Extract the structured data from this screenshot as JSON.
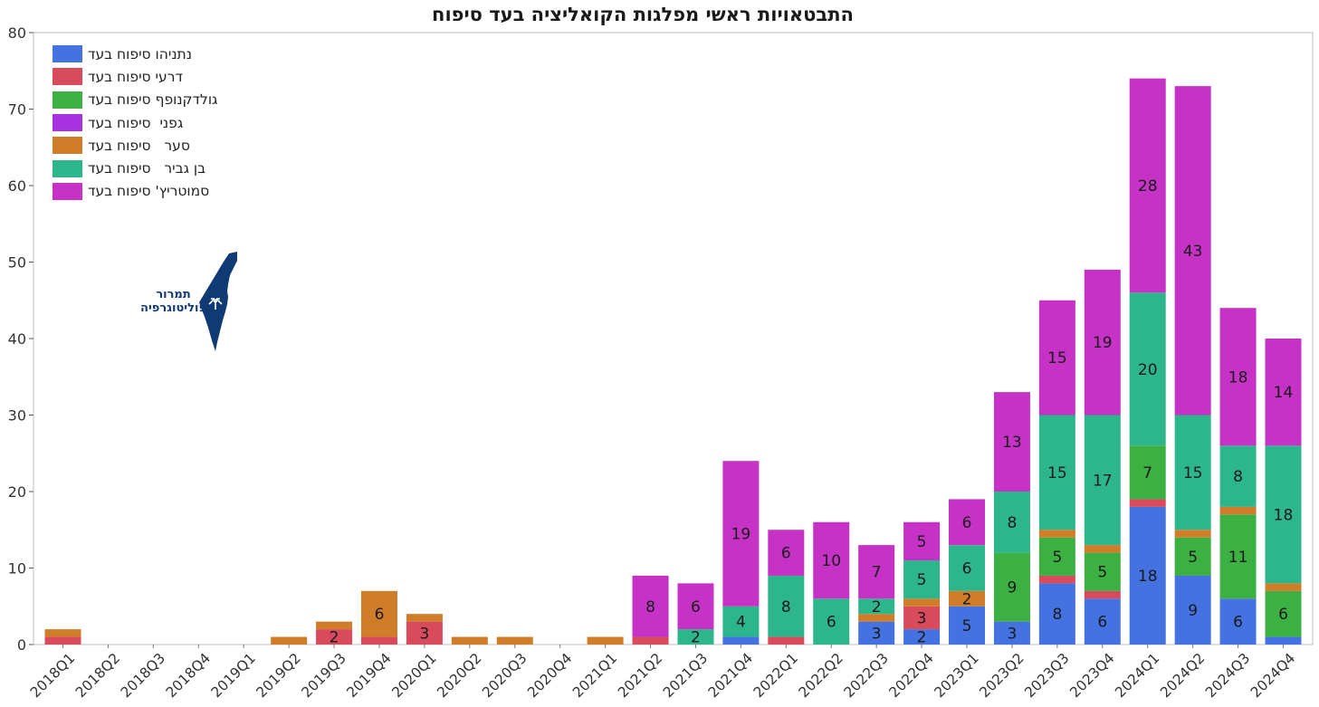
{
  "chart_data": {
    "type": "bar",
    "stacked": true,
    "title": "התבטאויות ראשי מפלגות הקואליציה בעד סיפוח",
    "xlabel": "",
    "ylabel": "",
    "ylim": [
      0,
      80
    ],
    "yticks": [
      0,
      10,
      20,
      30,
      40,
      50,
      60,
      70,
      80
    ],
    "grid": false,
    "legend_position": "top-left",
    "categories": [
      "2018Q1",
      "2018Q2",
      "2018Q3",
      "2018Q4",
      "2019Q1",
      "2019Q2",
      "2019Q3",
      "2019Q4",
      "2020Q1",
      "2020Q2",
      "2020Q3",
      "2020Q4",
      "2021Q1",
      "2021Q2",
      "2021Q3",
      "2021Q4",
      "2022Q1",
      "2022Q2",
      "2022Q3",
      "2022Q4",
      "2023Q1",
      "2023Q2",
      "2023Q3",
      "2023Q4",
      "2024Q1",
      "2024Q2",
      "2024Q3",
      "2024Q4"
    ],
    "series": [
      {
        "name": "נתניהו סיפוח בעד",
        "color": "#4472e0",
        "values": [
          0,
          0,
          0,
          0,
          0,
          0,
          0,
          0,
          0,
          0,
          0,
          0,
          0,
          0,
          0,
          1,
          0,
          0,
          3,
          2,
          5,
          3,
          8,
          6,
          18,
          9,
          6,
          1
        ],
        "labels": [
          null,
          null,
          null,
          null,
          null,
          null,
          null,
          null,
          null,
          null,
          null,
          null,
          null,
          null,
          null,
          null,
          null,
          null,
          3,
          2,
          5,
          3,
          8,
          6,
          18,
          9,
          6,
          null
        ]
      },
      {
        "name": "דרעי סיפוח בעד",
        "color": "#d94b5c",
        "values": [
          1,
          0,
          0,
          0,
          0,
          0,
          2,
          1,
          3,
          0,
          0,
          0,
          0,
          1,
          0,
          0,
          1,
          0,
          0,
          3,
          0,
          0,
          1,
          1,
          1,
          0,
          0,
          0
        ],
        "labels": [
          null,
          null,
          null,
          null,
          null,
          null,
          2,
          null,
          3,
          null,
          null,
          null,
          null,
          null,
          null,
          null,
          null,
          null,
          null,
          3,
          null,
          null,
          null,
          null,
          null,
          null,
          null,
          null
        ]
      },
      {
        "name": "גולדקנופף סיפוח בעד",
        "color": "#3cb043",
        "values": [
          0,
          0,
          0,
          0,
          0,
          0,
          0,
          0,
          0,
          0,
          0,
          0,
          0,
          0,
          0,
          0,
          0,
          0,
          0,
          0,
          0,
          9,
          5,
          5,
          7,
          5,
          11,
          6
        ],
        "labels": [
          null,
          null,
          null,
          null,
          null,
          null,
          null,
          null,
          null,
          null,
          null,
          null,
          null,
          null,
          null,
          null,
          null,
          null,
          null,
          null,
          null,
          9,
          5,
          5,
          7,
          5,
          11,
          6
        ]
      },
      {
        "name": "גפני  סיפוח בעד",
        "color": "#a932e0",
        "values": [
          0,
          0,
          0,
          0,
          0,
          0,
          0,
          0,
          0,
          0,
          0,
          0,
          0,
          0,
          0,
          0,
          0,
          0,
          0,
          0,
          0,
          0,
          0,
          0,
          0,
          0,
          0,
          0
        ],
        "labels": [
          null,
          null,
          null,
          null,
          null,
          null,
          null,
          null,
          null,
          null,
          null,
          null,
          null,
          null,
          null,
          null,
          null,
          null,
          null,
          null,
          null,
          null,
          null,
          null,
          null,
          null,
          null,
          null
        ]
      },
      {
        "name": "סער   סיפוח בעד",
        "color": "#d07d2a",
        "values": [
          1,
          0,
          0,
          0,
          0,
          1,
          1,
          6,
          1,
          1,
          1,
          0,
          1,
          0,
          0,
          0,
          0,
          0,
          1,
          1,
          2,
          0,
          1,
          1,
          0,
          1,
          1,
          1
        ],
        "labels": [
          null,
          null,
          null,
          null,
          null,
          null,
          null,
          6,
          null,
          null,
          null,
          null,
          null,
          null,
          null,
          null,
          null,
          null,
          null,
          null,
          2,
          null,
          null,
          null,
          null,
          null,
          null,
          null
        ]
      },
      {
        "name": "בן גביר   סיפוח בעד",
        "color": "#2db68c",
        "values": [
          0,
          0,
          0,
          0,
          0,
          0,
          0,
          0,
          0,
          0,
          0,
          0,
          0,
          0,
          2,
          4,
          8,
          6,
          2,
          5,
          6,
          8,
          15,
          17,
          20,
          15,
          8,
          18
        ],
        "labels": [
          null,
          null,
          null,
          null,
          null,
          null,
          null,
          null,
          null,
          null,
          null,
          null,
          null,
          null,
          2,
          4,
          8,
          6,
          2,
          5,
          6,
          8,
          15,
          17,
          20,
          15,
          8,
          18
        ]
      },
      {
        "name": "סמוטריץ' סיפוח בעד",
        "color": "#c532c5",
        "values": [
          0,
          0,
          0,
          0,
          0,
          0,
          0,
          0,
          0,
          0,
          0,
          0,
          0,
          8,
          6,
          19,
          6,
          10,
          7,
          5,
          6,
          13,
          15,
          19,
          28,
          43,
          18,
          14
        ],
        "labels": [
          null,
          null,
          null,
          null,
          null,
          null,
          null,
          null,
          null,
          null,
          null,
          null,
          null,
          8,
          6,
          19,
          6,
          10,
          7,
          5,
          6,
          13,
          15,
          19,
          28,
          43,
          18,
          14
        ]
      }
    ]
  },
  "logo": {
    "line1": "תמרור",
    "line2": "פוליטוגרפיה",
    "map_color": "#0f3a73"
  }
}
